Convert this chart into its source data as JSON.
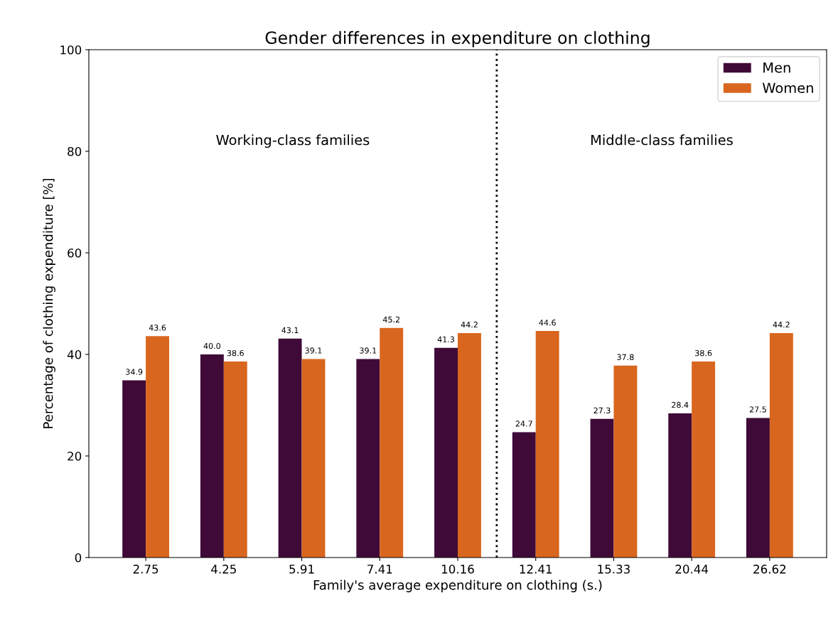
{
  "chart_data": {
    "type": "bar",
    "title": "Gender differences in expenditure on clothing",
    "xlabel": "Family's average expenditure on clothing (s.)",
    "ylabel": "Percentage of clothing expenditure [%]",
    "categories": [
      "2.75",
      "4.25",
      "5.91",
      "7.41",
      "10.16",
      "12.41",
      "15.33",
      "20.44",
      "26.62"
    ],
    "series": [
      {
        "name": "Men",
        "color": "#3f0a38",
        "values": [
          34.9,
          40.0,
          43.1,
          39.1,
          41.3,
          24.7,
          27.3,
          28.4,
          27.5
        ],
        "value_labels": [
          "34.9",
          "40.0",
          "43.1",
          "39.1",
          "41.3",
          "24.7",
          "27.3",
          "28.4",
          "27.5"
        ]
      },
      {
        "name": "Women",
        "color": "#d9661f",
        "values": [
          43.6,
          38.6,
          39.1,
          45.2,
          44.2,
          44.6,
          37.8,
          38.6,
          44.2
        ],
        "value_labels": [
          "43.6",
          "38.6",
          "39.1",
          "45.2",
          "44.2",
          "44.6",
          "37.8",
          "38.6",
          "44.2"
        ]
      }
    ],
    "ylim": [
      0,
      100
    ],
    "yticks": [
      0,
      20,
      40,
      60,
      80,
      100
    ],
    "annotations": [
      "Working-class families",
      "Middle-class families"
    ],
    "legend": "top right",
    "grid": false
  }
}
